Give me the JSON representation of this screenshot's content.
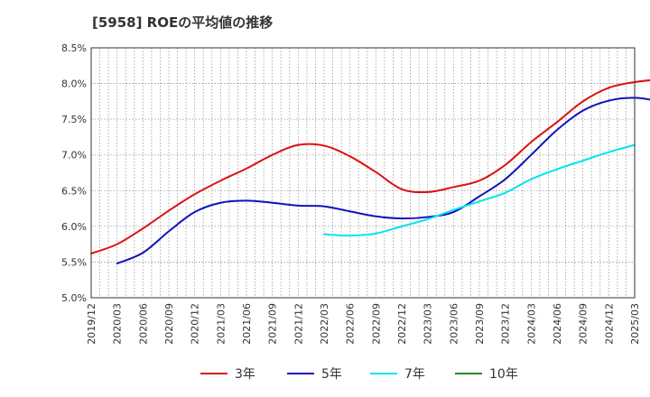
{
  "chart_data": {
    "type": "line",
    "title": "[5958]  ROEの平均値の推移",
    "xlabel": "",
    "ylabel": "",
    "ylim": [
      5.0,
      8.5
    ],
    "yticks": [
      5.0,
      5.5,
      6.0,
      6.5,
      7.0,
      7.5,
      8.0,
      8.5
    ],
    "ytick_labels": [
      "5.0%",
      "5.5%",
      "6.0%",
      "6.5%",
      "7.0%",
      "7.5%",
      "8.0%",
      "8.5%"
    ],
    "x_start": "2019/12",
    "xlim_months": [
      0,
      63
    ],
    "xticks": [
      "2019/12",
      "2020/03",
      "2020/06",
      "2020/09",
      "2020/12",
      "2021/03",
      "2021/06",
      "2021/09",
      "2021/12",
      "2022/03",
      "2022/06",
      "2022/09",
      "2022/12",
      "2023/03",
      "2023/06",
      "2023/09",
      "2023/12",
      "2024/03",
      "2024/06",
      "2024/09",
      "2024/12",
      "2025/03"
    ],
    "grid": true,
    "legend_position": "bottom",
    "series": [
      {
        "name": "3年",
        "color": "#dd1111",
        "start": "2019/12",
        "values": [
          5.62,
          5.75,
          5.97,
          6.22,
          6.45,
          6.64,
          6.81,
          7.0,
          7.14,
          7.13,
          6.98,
          6.76,
          6.52,
          6.48,
          6.55,
          6.64,
          6.86,
          7.18,
          7.46,
          7.75,
          7.94,
          8.02,
          8.06
        ]
      },
      {
        "name": "5年",
        "color": "#1111bb",
        "start": "2020/03",
        "values": [
          5.48,
          5.63,
          5.93,
          6.2,
          6.33,
          6.36,
          6.33,
          6.29,
          6.28,
          6.21,
          6.14,
          6.11,
          6.13,
          6.2,
          6.42,
          6.66,
          7.0,
          7.35,
          7.62,
          7.76,
          7.8,
          7.75
        ]
      },
      {
        "name": "7年",
        "color": "#00e5ee",
        "start": "2022/03",
        "values": [
          5.89,
          5.87,
          5.9,
          6.0,
          6.1,
          6.23,
          6.35,
          6.47,
          6.66,
          6.8,
          6.92,
          7.04,
          7.14
        ]
      },
      {
        "name": "10年",
        "color": "#228b22",
        "start": "2025/03",
        "values": []
      }
    ]
  }
}
